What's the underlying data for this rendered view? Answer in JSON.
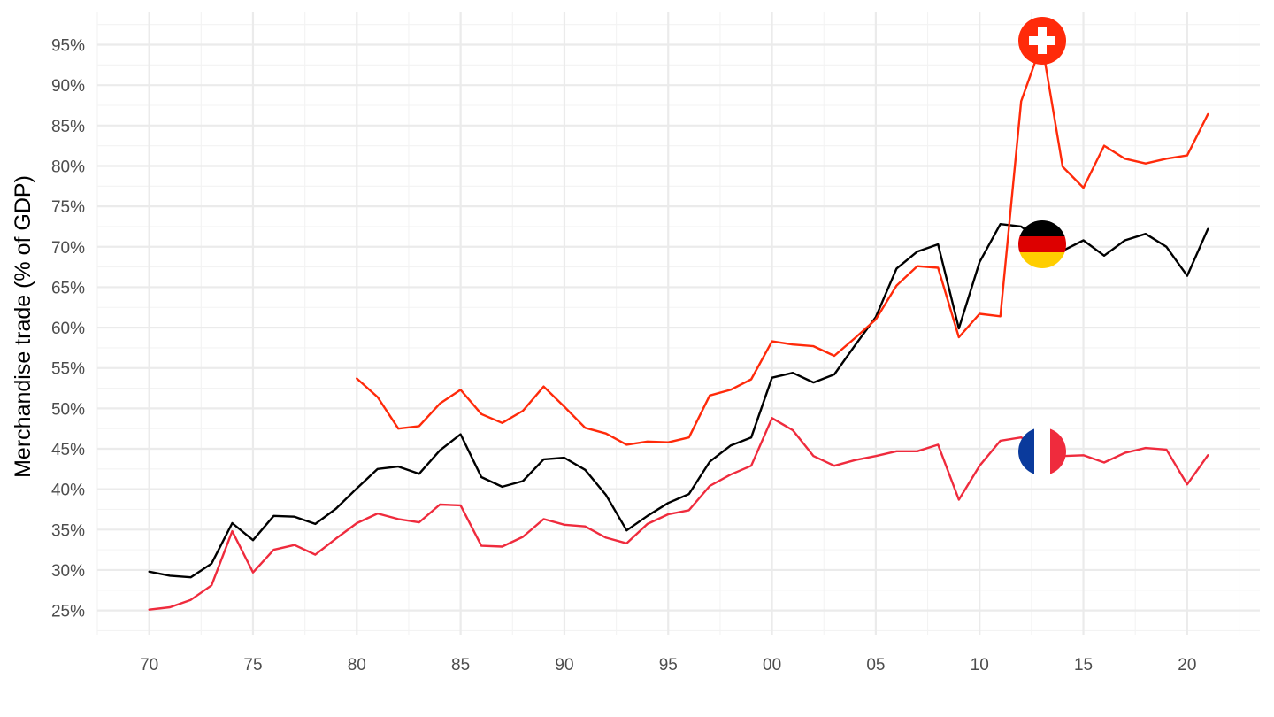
{
  "chart_data": {
    "type": "line",
    "title": "",
    "xlabel": "",
    "ylabel": "Merchandise trade (% of GDP)",
    "xlim": [
      1967.5,
      2023.5
    ],
    "ylim": [
      22,
      99
    ],
    "x_ticks": [
      1970,
      1975,
      1980,
      1985,
      1990,
      1995,
      2000,
      2005,
      2010,
      2015,
      2020
    ],
    "x_tick_labels": [
      "70",
      "75",
      "80",
      "85",
      "90",
      "95",
      "00",
      "05",
      "10",
      "15",
      "20"
    ],
    "y_ticks": [
      25,
      30,
      35,
      40,
      45,
      50,
      55,
      60,
      65,
      70,
      75,
      80,
      85,
      90,
      95
    ],
    "y_tick_labels": [
      "25%",
      "30%",
      "35%",
      "40%",
      "45%",
      "50%",
      "55%",
      "60%",
      "65%",
      "70%",
      "75%",
      "80%",
      "85%",
      "90%",
      "95%"
    ],
    "grid": true,
    "legend": "none (flag icons mark each series at 2013)",
    "series": [
      {
        "country": "Germany",
        "color": "#000000",
        "flag": "germany-flag-icon",
        "x": [
          1970,
          1971,
          1972,
          1973,
          1974,
          1975,
          1976,
          1977,
          1978,
          1979,
          1980,
          1981,
          1982,
          1983,
          1984,
          1985,
          1986,
          1987,
          1988,
          1989,
          1990,
          1991,
          1992,
          1993,
          1994,
          1995,
          1996,
          1997,
          1998,
          1999,
          2000,
          2001,
          2002,
          2003,
          2004,
          2005,
          2006,
          2007,
          2008,
          2009,
          2010,
          2011,
          2012,
          2013,
          2014,
          2015,
          2016,
          2017,
          2018,
          2019,
          2020,
          2021
        ],
        "values": [
          29.8,
          29.3,
          29.1,
          30.8,
          35.8,
          33.7,
          36.7,
          36.6,
          35.7,
          37.6,
          40.1,
          42.5,
          42.8,
          41.9,
          44.8,
          46.8,
          41.5,
          40.3,
          41.0,
          43.7,
          43.9,
          42.4,
          39.3,
          34.9,
          36.7,
          38.3,
          39.4,
          43.4,
          45.4,
          46.4,
          53.8,
          54.4,
          53.2,
          54.2,
          57.8,
          61.3,
          67.3,
          69.4,
          70.3,
          59.9,
          68.1,
          72.8,
          72.5,
          70.5,
          69.5,
          70.8,
          68.9,
          70.8,
          71.6,
          70.0,
          66.4,
          72.2
        ]
      },
      {
        "country": "Switzerland",
        "color": "#ff2a0a",
        "flag": "switzerland-flag-icon",
        "x": [
          1980,
          1981,
          1982,
          1983,
          1984,
          1985,
          1986,
          1987,
          1988,
          1989,
          1990,
          1991,
          1992,
          1993,
          1994,
          1995,
          1996,
          1997,
          1998,
          1999,
          2000,
          2001,
          2002,
          2003,
          2004,
          2005,
          2006,
          2007,
          2008,
          2009,
          2010,
          2011,
          2012,
          2013,
          2014,
          2015,
          2016,
          2017,
          2018,
          2019,
          2020,
          2021
        ],
        "values": [
          53.7,
          51.4,
          47.5,
          47.8,
          50.6,
          52.3,
          49.3,
          48.2,
          49.7,
          52.7,
          50.2,
          47.6,
          46.9,
          45.5,
          45.9,
          45.8,
          46.4,
          51.6,
          52.3,
          53.6,
          58.3,
          57.9,
          57.7,
          56.5,
          58.7,
          61.0,
          65.2,
          67.6,
          67.4,
          58.8,
          61.7,
          61.4,
          88.0,
          95.2,
          79.9,
          77.3,
          82.5,
          80.9,
          80.3,
          80.9,
          81.3,
          86.4
        ]
      },
      {
        "country": "France",
        "color": "#ef2b3d",
        "flag": "france-flag-icon",
        "x": [
          1970,
          1971,
          1972,
          1973,
          1974,
          1975,
          1976,
          1977,
          1978,
          1979,
          1980,
          1981,
          1982,
          1983,
          1984,
          1985,
          1986,
          1987,
          1988,
          1989,
          1990,
          1991,
          1992,
          1993,
          1994,
          1995,
          1996,
          1997,
          1998,
          1999,
          2000,
          2001,
          2002,
          2003,
          2004,
          2005,
          2006,
          2007,
          2008,
          2009,
          2010,
          2011,
          2012,
          2013,
          2014,
          2015,
          2016,
          2017,
          2018,
          2019,
          2020,
          2021
        ],
        "values": [
          25.1,
          25.4,
          26.3,
          28.1,
          34.8,
          29.7,
          32.5,
          33.1,
          31.9,
          33.9,
          35.8,
          37.0,
          36.3,
          35.9,
          38.1,
          38.0,
          33.0,
          32.9,
          34.1,
          36.3,
          35.6,
          35.4,
          34.0,
          33.3,
          35.7,
          36.9,
          37.4,
          40.4,
          41.8,
          42.9,
          48.8,
          47.3,
          44.1,
          42.9,
          43.6,
          44.1,
          44.7,
          44.7,
          45.5,
          38.7,
          42.9,
          46.0,
          46.4,
          44.9,
          44.1,
          44.2,
          43.3,
          44.5,
          45.1,
          44.9,
          40.6,
          44.2
        ]
      }
    ]
  }
}
